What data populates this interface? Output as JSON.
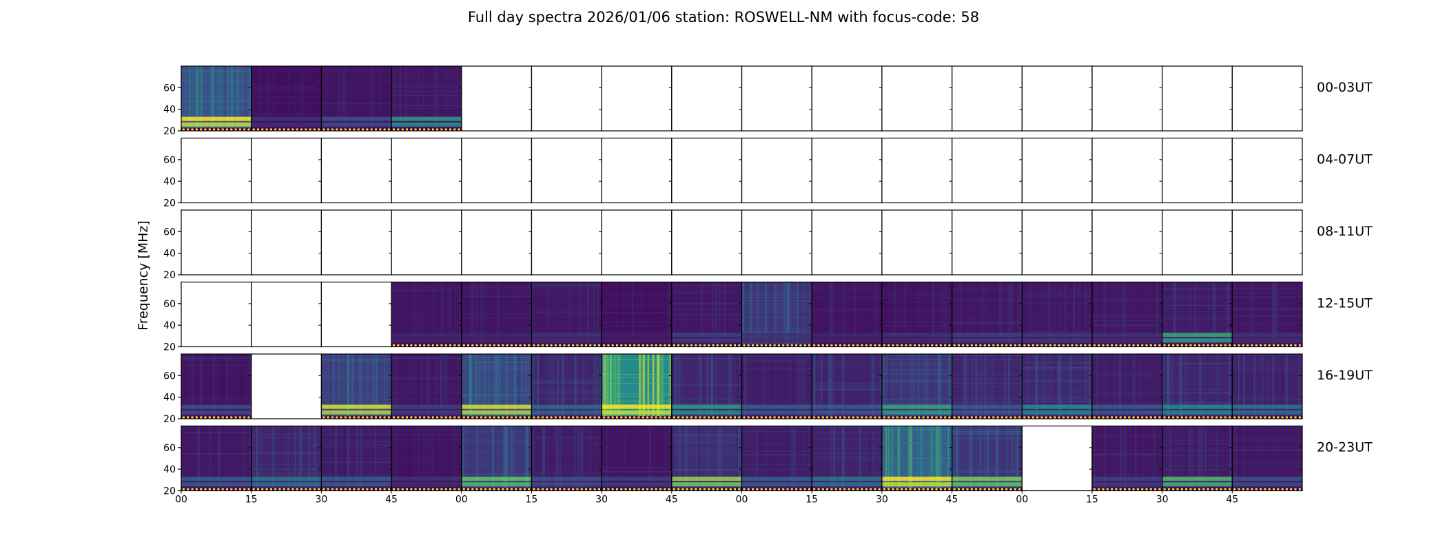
{
  "chart_data": {
    "type": "heatmap",
    "title": "Full day spectra 2026/01/06 station: ROSWELL-NM with focus-code: 58",
    "ylabel": "Frequency [MHz]",
    "xlabel": "",
    "ylim": [
      20,
      80
    ],
    "yticks": [
      "60",
      "40",
      "20"
    ],
    "ytick_values": [
      60,
      40,
      20
    ],
    "xtick_labels": [
      "00",
      "15",
      "30",
      "45",
      "00",
      "15",
      "30",
      "45",
      "00",
      "15",
      "30",
      "45",
      "00",
      "15",
      "30",
      "45"
    ],
    "rows": [
      {
        "label": "00-03UT",
        "panels": [
          {
            "data": true,
            "level": 0.45,
            "band": 1.0
          },
          {
            "data": true,
            "level": 0.08,
            "band": 0.15
          },
          {
            "data": true,
            "level": 0.1,
            "band": 0.25
          },
          {
            "data": true,
            "level": 0.12,
            "band": 0.55
          },
          {
            "data": false
          },
          {
            "data": false
          },
          {
            "data": false
          },
          {
            "data": false
          },
          {
            "data": false
          },
          {
            "data": false
          },
          {
            "data": false
          },
          {
            "data": false
          },
          {
            "data": false
          },
          {
            "data": false
          },
          {
            "data": false
          },
          {
            "data": false
          }
        ]
      },
      {
        "label": "04-07UT",
        "panels": [
          {
            "data": false
          },
          {
            "data": false
          },
          {
            "data": false
          },
          {
            "data": false
          },
          {
            "data": false
          },
          {
            "data": false
          },
          {
            "data": false
          },
          {
            "data": false
          },
          {
            "data": false
          },
          {
            "data": false
          },
          {
            "data": false
          },
          {
            "data": false
          },
          {
            "data": false
          },
          {
            "data": false
          },
          {
            "data": false
          },
          {
            "data": false
          }
        ]
      },
      {
        "label": "08-11UT",
        "panels": [
          {
            "data": false
          },
          {
            "data": false
          },
          {
            "data": false
          },
          {
            "data": false
          },
          {
            "data": false
          },
          {
            "data": false
          },
          {
            "data": false
          },
          {
            "data": false
          },
          {
            "data": false
          },
          {
            "data": false
          },
          {
            "data": false
          },
          {
            "data": false
          },
          {
            "data": false
          },
          {
            "data": false
          },
          {
            "data": false
          },
          {
            "data": false
          }
        ]
      },
      {
        "label": "12-15UT",
        "panels": [
          {
            "data": false
          },
          {
            "data": false
          },
          {
            "data": false
          },
          {
            "data": true,
            "level": 0.1,
            "band": 0.12
          },
          {
            "data": true,
            "level": 0.1,
            "band": 0.12
          },
          {
            "data": true,
            "level": 0.12,
            "band": 0.15
          },
          {
            "data": true,
            "level": 0.08,
            "band": 0.1
          },
          {
            "data": true,
            "level": 0.12,
            "band": 0.2
          },
          {
            "data": true,
            "level": 0.3,
            "band": 0.15
          },
          {
            "data": true,
            "level": 0.1,
            "band": 0.12
          },
          {
            "data": true,
            "level": 0.1,
            "band": 0.15
          },
          {
            "data": true,
            "level": 0.12,
            "band": 0.2
          },
          {
            "data": true,
            "level": 0.12,
            "band": 0.18
          },
          {
            "data": true,
            "level": 0.12,
            "band": 0.15
          },
          {
            "data": true,
            "level": 0.15,
            "band": 0.6
          },
          {
            "data": true,
            "level": 0.12,
            "band": 0.15
          }
        ]
      },
      {
        "label": "16-19UT",
        "panels": [
          {
            "data": true,
            "level": 0.1,
            "band": 0.25
          },
          {
            "data": false
          },
          {
            "data": true,
            "level": 0.35,
            "band": 0.95
          },
          {
            "data": true,
            "level": 0.12,
            "band": 0.2
          },
          {
            "data": true,
            "level": 0.4,
            "band": 0.95
          },
          {
            "data": true,
            "level": 0.2,
            "band": 0.35
          },
          {
            "data": true,
            "level": 0.85,
            "band": 1.0
          },
          {
            "data": true,
            "level": 0.2,
            "band": 0.55
          },
          {
            "data": true,
            "level": 0.15,
            "band": 0.3
          },
          {
            "data": true,
            "level": 0.18,
            "band": 0.3
          },
          {
            "data": true,
            "level": 0.3,
            "band": 0.6
          },
          {
            "data": true,
            "level": 0.2,
            "band": 0.3
          },
          {
            "data": true,
            "level": 0.22,
            "band": 0.5
          },
          {
            "data": true,
            "level": 0.15,
            "band": 0.3
          },
          {
            "data": true,
            "level": 0.2,
            "band": 0.5
          },
          {
            "data": true,
            "level": 0.18,
            "band": 0.4
          }
        ]
      },
      {
        "label": "20-23UT",
        "panels": [
          {
            "data": true,
            "level": 0.12,
            "band": 0.3
          },
          {
            "data": true,
            "level": 0.2,
            "band": 0.4
          },
          {
            "data": true,
            "level": 0.15,
            "band": 0.3
          },
          {
            "data": true,
            "level": 0.1,
            "band": 0.15
          },
          {
            "data": true,
            "level": 0.3,
            "band": 0.75
          },
          {
            "data": true,
            "level": 0.15,
            "band": 0.25
          },
          {
            "data": true,
            "level": 0.1,
            "band": 0.2
          },
          {
            "data": true,
            "level": 0.25,
            "band": 0.85
          },
          {
            "data": true,
            "level": 0.15,
            "band": 0.3
          },
          {
            "data": true,
            "level": 0.18,
            "band": 0.4
          },
          {
            "data": true,
            "level": 0.55,
            "band": 1.0
          },
          {
            "data": true,
            "level": 0.3,
            "band": 0.8
          },
          {
            "data": false
          },
          {
            "data": true,
            "level": 0.12,
            "band": 0.2
          },
          {
            "data": true,
            "level": 0.15,
            "band": 0.7
          },
          {
            "data": true,
            "level": 0.12,
            "band": 0.25
          }
        ]
      }
    ],
    "colormap": [
      "#440154",
      "#3b528b",
      "#21918c",
      "#5ec962",
      "#fde725"
    ]
  }
}
